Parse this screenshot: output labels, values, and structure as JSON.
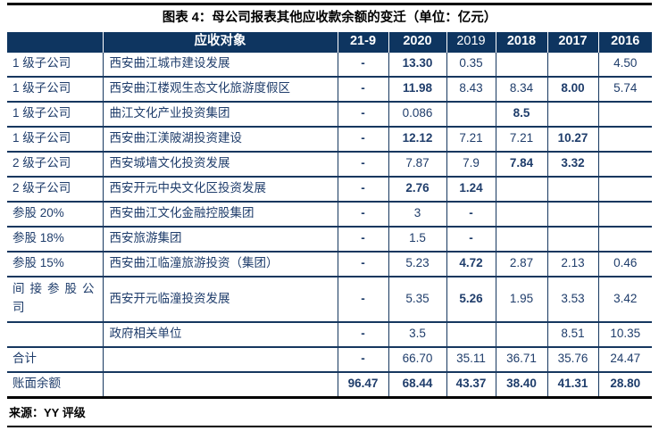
{
  "title": "图表 4：母公司报表其他应收款余额的变迁（单位：亿元）",
  "source": "来源：YY 评级",
  "colors": {
    "header_bg": "#0e3560",
    "table_text": "#1f3d6b",
    "border_navy": "#16375f",
    "rule_black": "#000000",
    "page_bg": "#ffffff"
  },
  "table": {
    "columns": [
      {
        "label": "",
        "bold": true
      },
      {
        "label": "应收对象",
        "bold": true
      },
      {
        "label": "21-9",
        "bold": true
      },
      {
        "label": "2020",
        "bold": true
      },
      {
        "label": "2019",
        "bold": false
      },
      {
        "label": "2018",
        "bold": true
      },
      {
        "label": "2017",
        "bold": true
      },
      {
        "label": "2016",
        "bold": true
      }
    ],
    "rows": [
      {
        "category": "1 级子公司",
        "name": "西安曲江城市建设发展",
        "values": [
          "-",
          "13.30",
          "0.35",
          "",
          "",
          "4.50"
        ],
        "bold": [
          true,
          true,
          false,
          false,
          false,
          false
        ]
      },
      {
        "category": "1 级子公司",
        "name": "西安曲江楼观生态文化旅游度假区",
        "values": [
          "-",
          "11.98",
          "8.43",
          "8.34",
          "8.00",
          "5.74"
        ],
        "bold": [
          true,
          true,
          false,
          false,
          true,
          false
        ]
      },
      {
        "category": "1 级子公司",
        "name": "曲江文化产业投资集团",
        "values": [
          "-",
          "0.086",
          "",
          "8.5",
          "",
          ""
        ],
        "bold": [
          true,
          false,
          false,
          true,
          false,
          false
        ]
      },
      {
        "category": "1 级子公司",
        "name": "西安曲江渼陂湖投资建设",
        "values": [
          "-",
          "12.12",
          "7.21",
          "7.21",
          "10.27",
          ""
        ],
        "bold": [
          true,
          true,
          false,
          false,
          true,
          false
        ]
      },
      {
        "category": "2 级子公司",
        "name": "西安城墙文化投资发展",
        "values": [
          "-",
          "7.87",
          "7.9",
          "7.84",
          "3.32",
          ""
        ],
        "bold": [
          true,
          false,
          false,
          true,
          true,
          false
        ]
      },
      {
        "category": "2 级子公司",
        "name": "西安开元中央文化区投资发展",
        "values": [
          "-",
          "2.76",
          "1.24",
          "",
          "",
          ""
        ],
        "bold": [
          true,
          true,
          true,
          false,
          false,
          false
        ]
      },
      {
        "category": "参股 20%",
        "name": "西安曲江文化金融控股集团",
        "values": [
          "-",
          "3",
          "-",
          "",
          "",
          ""
        ],
        "bold": [
          true,
          false,
          true,
          false,
          false,
          false
        ]
      },
      {
        "category": "参股 18%",
        "name": "西安旅游集团",
        "values": [
          "-",
          "1.5",
          "-",
          "",
          "",
          ""
        ],
        "bold": [
          true,
          false,
          true,
          false,
          false,
          false
        ]
      },
      {
        "category": "参股 15%",
        "name": "西安曲江临潼旅游投资（集团）",
        "values": [
          "-",
          "5.23",
          "4.72",
          "2.87",
          "2.13",
          "0.46"
        ],
        "bold": [
          true,
          false,
          true,
          false,
          false,
          false
        ]
      },
      {
        "category": "间接参股公司",
        "name": "西安开元临潼投资发展",
        "values": [
          "-",
          "5.35",
          "5.26",
          "1.95",
          "3.53",
          "3.42"
        ],
        "bold": [
          true,
          false,
          true,
          false,
          false,
          false
        ],
        "tall": true
      },
      {
        "category": "",
        "name": "政府相关单位",
        "values": [
          "-",
          "3.5",
          "",
          "",
          "8.51",
          "10.35"
        ],
        "bold": [
          true,
          false,
          false,
          false,
          false,
          false
        ]
      },
      {
        "category": "合计",
        "name": "",
        "values": [
          "-",
          "66.70",
          "35.11",
          "36.71",
          "35.76",
          "24.47"
        ],
        "bold": [
          true,
          false,
          false,
          false,
          false,
          false
        ]
      },
      {
        "category": "账面余额",
        "name": "",
        "values": [
          "96.47",
          "68.44",
          "43.37",
          "38.40",
          "41.31",
          "28.80"
        ],
        "bold": [
          true,
          true,
          true,
          true,
          true,
          true
        ]
      }
    ]
  }
}
